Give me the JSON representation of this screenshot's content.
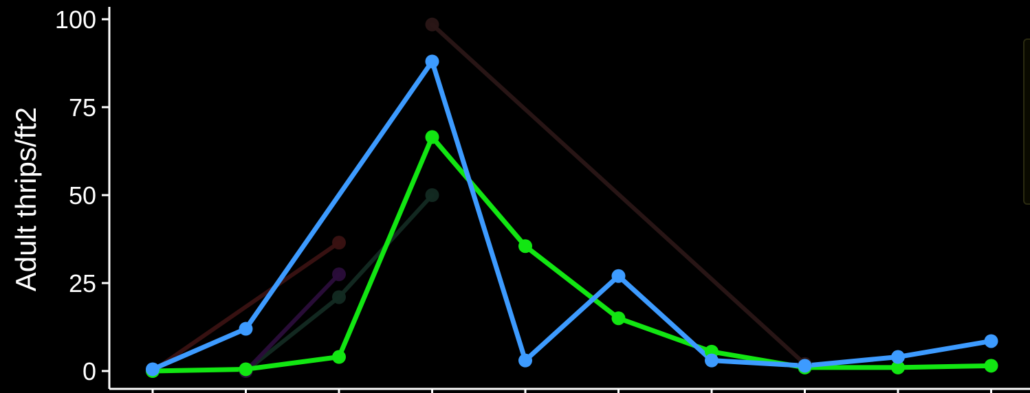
{
  "chart_data": {
    "type": "line",
    "title": "",
    "xlabel": "",
    "ylabel": "Adult thrips/ft2",
    "ylim": [
      0,
      100
    ],
    "yticks": [
      0,
      25,
      50,
      75,
      100
    ],
    "x": [
      1,
      2,
      3,
      4,
      5,
      6,
      7,
      8,
      9,
      10
    ],
    "xlim": [
      0.95,
      10.4
    ],
    "grid": false,
    "legend": "right",
    "series": [
      {
        "color": "#3d9bff",
        "width": 7,
        "opacity": 1,
        "values": [
          0.5,
          12,
          null,
          88,
          3,
          27,
          3,
          1.5,
          4,
          8.5
        ]
      },
      {
        "color": "#12e612",
        "width": 7,
        "opacity": 1,
        "values": [
          0,
          0.5,
          4,
          66.5,
          35.5,
          15,
          5.5,
          1,
          1,
          1.5
        ]
      },
      {
        "color": "#3a1212",
        "width": 6,
        "opacity": 0.95,
        "values": [
          0,
          null,
          36.5,
          null,
          null,
          null,
          null,
          null,
          null,
          null
        ]
      },
      {
        "color": "#2a0d3a",
        "width": 6,
        "opacity": 0.95,
        "values": [
          null,
          0,
          27.5,
          null,
          null,
          null,
          null,
          null,
          null,
          null
        ]
      },
      {
        "color": "#132a22",
        "width": 6,
        "opacity": 0.95,
        "values": [
          null,
          0,
          21,
          50,
          null,
          null,
          null,
          null,
          null,
          null
        ]
      },
      {
        "color": "#2a1616",
        "width": 6,
        "opacity": 0.95,
        "values": [
          null,
          null,
          null,
          98.5,
          null,
          null,
          null,
          2,
          null,
          null
        ]
      }
    ]
  }
}
